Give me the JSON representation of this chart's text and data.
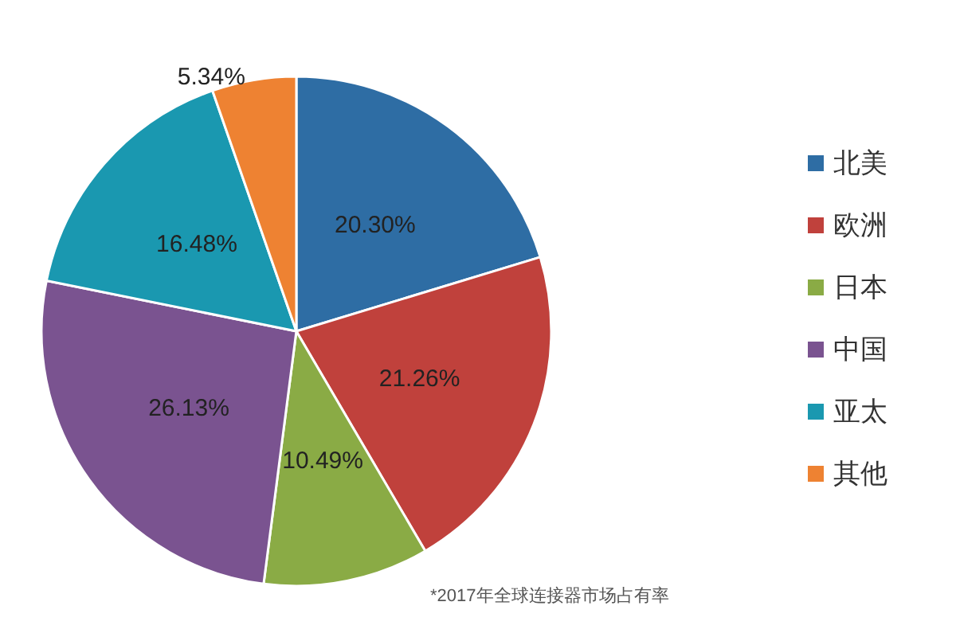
{
  "chart_data": {
    "type": "pie",
    "categories": [
      "北美",
      "欧洲",
      "日本",
      "中国",
      "亚太",
      "其他"
    ],
    "values": [
      20.3,
      21.26,
      10.49,
      26.13,
      16.48,
      5.34
    ],
    "colors": [
      "#2e6da4",
      "#c0413c",
      "#8aab45",
      "#7a5390",
      "#1a98b0",
      "#ee8232"
    ],
    "value_labels": [
      "20.30%",
      "21.26%",
      "10.49%",
      "26.13%",
      "16.48%",
      "5.34%"
    ],
    "legend": "right",
    "annotations": [
      "*2017年全球连接器市场占有率"
    ]
  }
}
